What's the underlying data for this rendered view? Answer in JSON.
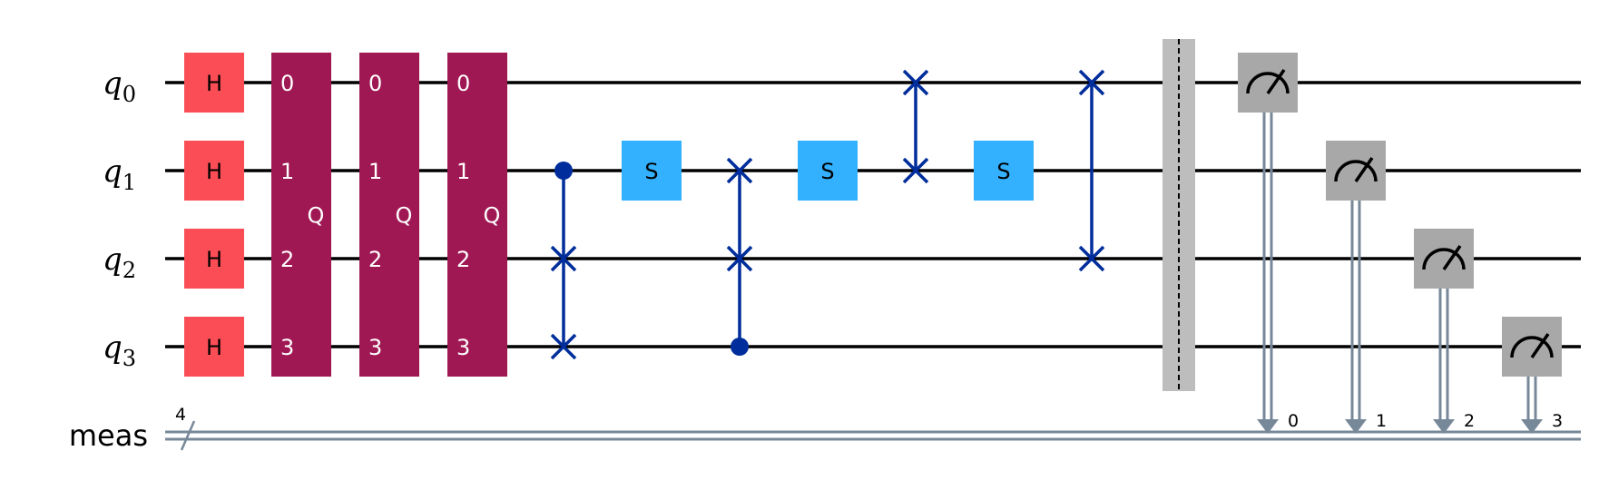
{
  "colors": {
    "wire": "#000000",
    "classical_wire": "#778899",
    "h_gate": "#fa4d56",
    "q_gate": "#9f1853",
    "s_gate": "#33b1ff",
    "two_qubit": "#002d9c",
    "barrier": "#bdbdbd",
    "measure": "#a8a8a8",
    "measure_symbol": "#000000",
    "gate_text_dark": "#000000",
    "gate_text_light": "#ffffff"
  },
  "qubits": [
    {
      "name": "q",
      "index": "0"
    },
    {
      "name": "q",
      "index": "1"
    },
    {
      "name": "q",
      "index": "2"
    },
    {
      "name": "q",
      "index": "3"
    }
  ],
  "classical_register": {
    "label": "meas",
    "size": "4"
  },
  "h_gates": [
    {
      "label": "H",
      "qubit": 0
    },
    {
      "label": "H",
      "qubit": 1
    },
    {
      "label": "H",
      "qubit": 2
    },
    {
      "label": "H",
      "qubit": 3
    }
  ],
  "q_blocks": [
    {
      "label": "Q",
      "pins": [
        "0",
        "1",
        "2",
        "3"
      ]
    },
    {
      "label": "Q",
      "pins": [
        "0",
        "1",
        "2",
        "3"
      ]
    },
    {
      "label": "Q",
      "pins": [
        "0",
        "1",
        "2",
        "3"
      ]
    }
  ],
  "ops": [
    {
      "type": "cswap",
      "control": 1,
      "targets": [
        2,
        3
      ]
    },
    {
      "type": "s",
      "label": "S",
      "qubit": 1
    },
    {
      "type": "cswap",
      "control": 3,
      "targets": [
        1,
        2
      ]
    },
    {
      "type": "s",
      "label": "S",
      "qubit": 1
    },
    {
      "type": "swap",
      "targets": [
        0,
        1
      ]
    },
    {
      "type": "s",
      "label": "S",
      "qubit": 1
    },
    {
      "type": "swap",
      "targets": [
        0,
        2
      ]
    }
  ],
  "measurements": [
    {
      "qubit": 0,
      "bit": "0"
    },
    {
      "qubit": 1,
      "bit": "1"
    },
    {
      "qubit": 2,
      "bit": "2"
    },
    {
      "qubit": 3,
      "bit": "3"
    }
  ]
}
